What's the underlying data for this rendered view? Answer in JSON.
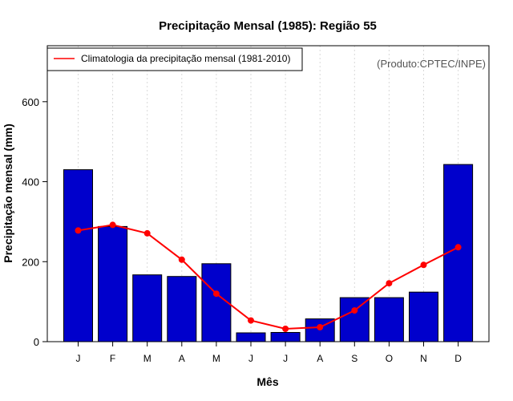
{
  "chart_data": {
    "type": "bar",
    "title": "Precipitação Mensal (1985): Região 55",
    "xlabel": "Mês",
    "ylabel": "Precipitação mensal (mm)",
    "ylim": [
      0,
      740
    ],
    "yticks": [
      0,
      200,
      400,
      600
    ],
    "categories": [
      "J",
      "F",
      "M",
      "A",
      "M",
      "J",
      "J",
      "A",
      "S",
      "O",
      "N",
      "D"
    ],
    "series": [
      {
        "name": "Precipitação mensal (1985)",
        "kind": "bar",
        "color": "#0000cc",
        "values": [
          430,
          288,
          167,
          163,
          195,
          22,
          23,
          57,
          110,
          110,
          124,
          443
        ]
      },
      {
        "name": "Climatologia da precipitação mensal (1981-2010)",
        "kind": "line",
        "color": "#ff0000",
        "values": [
          278,
          292,
          271,
          205,
          120,
          53,
          32,
          36,
          78,
          146,
          192,
          236
        ]
      }
    ],
    "legend": {
      "position": "top-left",
      "label": "Climatologia da precipitação mensal (1981-2010)"
    },
    "credit": "(Produto:CPTEC/INPE)",
    "grid": "vertical-dotted"
  }
}
